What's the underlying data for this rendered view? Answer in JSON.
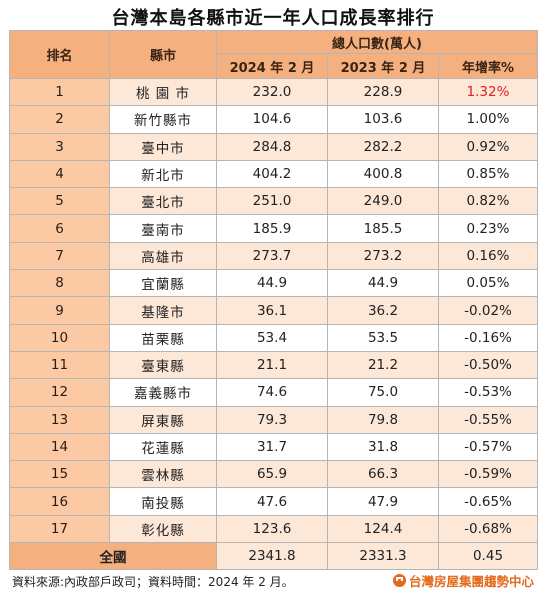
{
  "title": "台灣本島各縣市近一年人口成長率排行",
  "headers": {
    "rank": "排名",
    "city": "縣市",
    "population_group": "總人口數(萬人)",
    "y2024": "2024 年 2 月",
    "y2023": "2023 年 2 月",
    "growth": "年增率%"
  },
  "rows": [
    {
      "rank": "1",
      "city": "桃 園 市",
      "y2024": "232.0",
      "y2023": "228.9",
      "growth": "1.32%"
    },
    {
      "rank": "2",
      "city": "新竹縣市",
      "y2024": "104.6",
      "y2023": "103.6",
      "growth": "1.00%"
    },
    {
      "rank": "3",
      "city": "臺中市",
      "y2024": "284.8",
      "y2023": "282.2",
      "growth": "0.92%"
    },
    {
      "rank": "4",
      "city": "新北市",
      "y2024": "404.2",
      "y2023": "400.8",
      "growth": "0.85%"
    },
    {
      "rank": "5",
      "city": "臺北市",
      "y2024": "251.0",
      "y2023": "249.0",
      "growth": "0.82%"
    },
    {
      "rank": "6",
      "city": "臺南市",
      "y2024": "185.9",
      "y2023": "185.5",
      "growth": "0.23%"
    },
    {
      "rank": "7",
      "city": "高雄市",
      "y2024": "273.7",
      "y2023": "273.2",
      "growth": "0.16%"
    },
    {
      "rank": "8",
      "city": "宜蘭縣",
      "y2024": "44.9",
      "y2023": "44.9",
      "growth": "0.05%"
    },
    {
      "rank": "9",
      "city": "基隆市",
      "y2024": "36.1",
      "y2023": "36.2",
      "growth": "-0.02%"
    },
    {
      "rank": "10",
      "city": "苗栗縣",
      "y2024": "53.4",
      "y2023": "53.5",
      "growth": "-0.16%"
    },
    {
      "rank": "11",
      "city": "臺東縣",
      "y2024": "21.1",
      "y2023": "21.2",
      "growth": "-0.50%"
    },
    {
      "rank": "12",
      "city": "嘉義縣市",
      "y2024": "74.6",
      "y2023": "75.0",
      "growth": "-0.53%"
    },
    {
      "rank": "13",
      "city": "屏東縣",
      "y2024": "79.3",
      "y2023": "79.8",
      "growth": "-0.55%"
    },
    {
      "rank": "14",
      "city": "花蓮縣",
      "y2024": "31.7",
      "y2023": "31.8",
      "growth": "-0.57%"
    },
    {
      "rank": "15",
      "city": "雲林縣",
      "y2024": "65.9",
      "y2023": "66.3",
      "growth": "-0.59%"
    },
    {
      "rank": "16",
      "city": "南投縣",
      "y2024": "47.6",
      "y2023": "47.9",
      "growth": "-0.65%"
    },
    {
      "rank": "17",
      "city": "彰化縣",
      "y2024": "123.6",
      "y2023": "124.4",
      "growth": "-0.68%"
    }
  ],
  "total": {
    "label": "全國",
    "y2024": "2341.8",
    "y2023": "2331.3",
    "growth": "0.45"
  },
  "footer": {
    "source": "資料來源:內政部戶政司；資料時間：2024 年 2 月。",
    "brand": "台灣房屋集團趨勢中心",
    "brand_logo_icon": "house-logo-icon"
  },
  "colors": {
    "header": "#f5b07f",
    "highlight": "#e0202a",
    "brand": "#e36a1a"
  }
}
